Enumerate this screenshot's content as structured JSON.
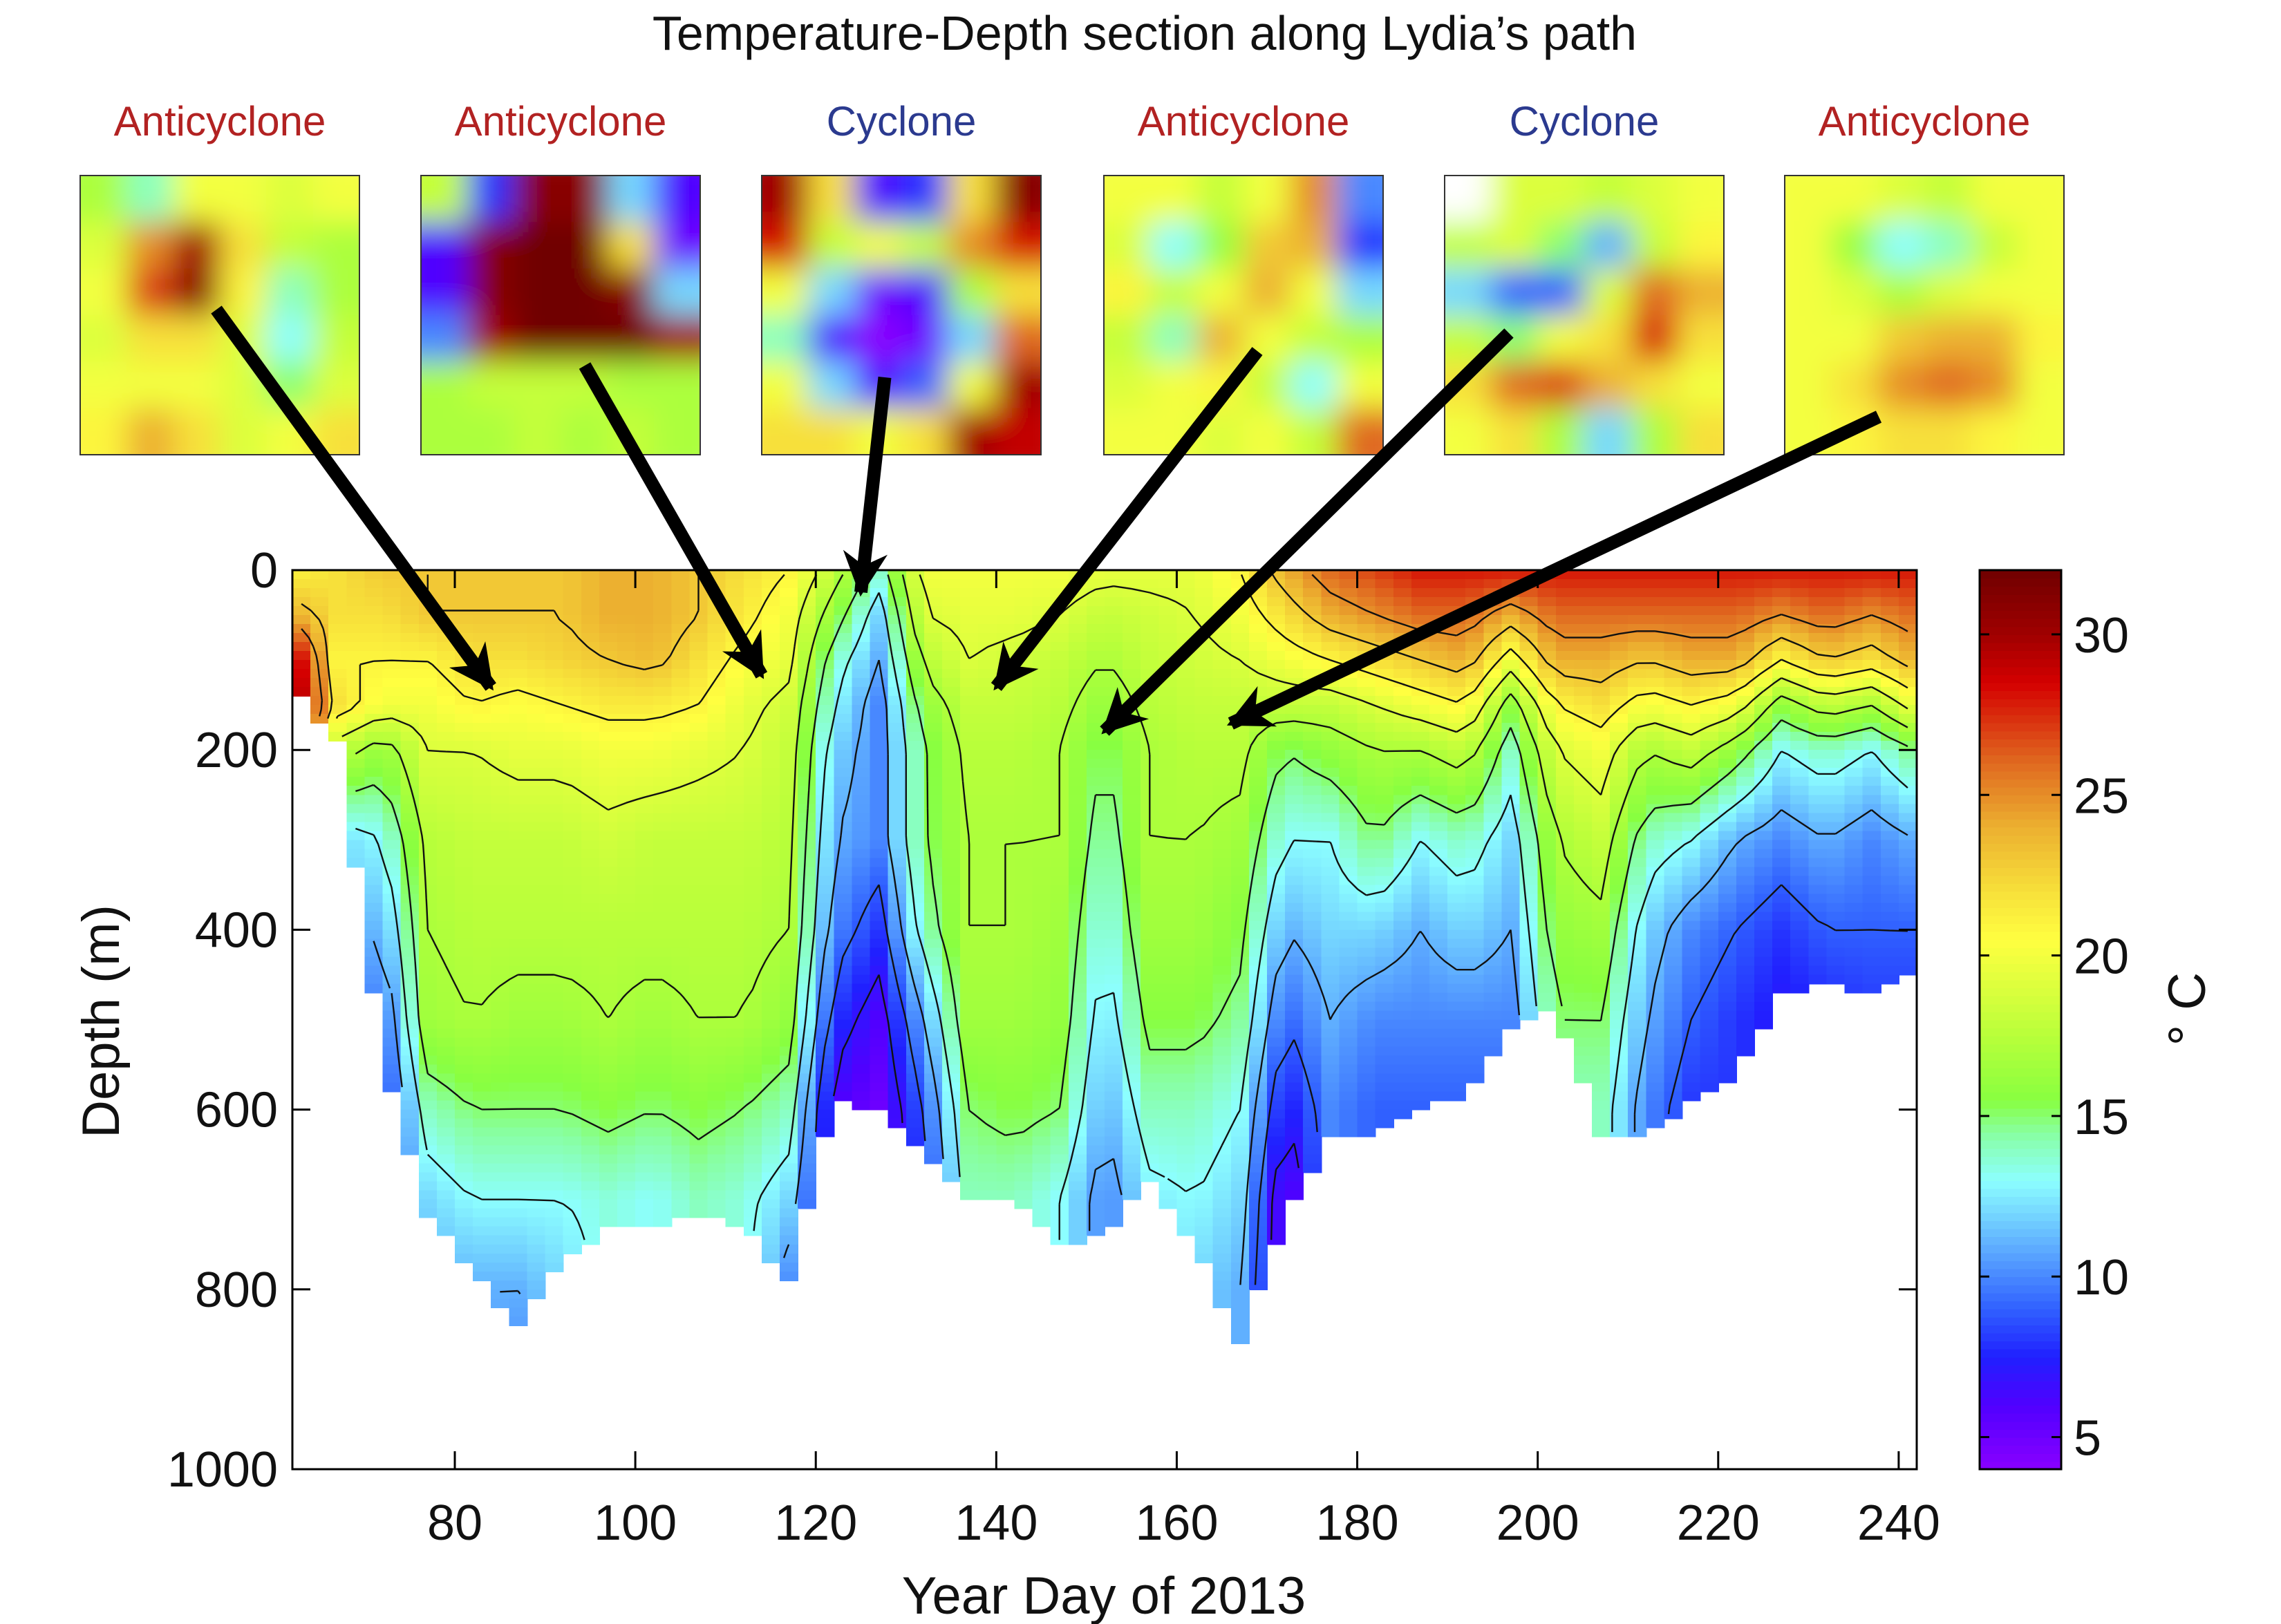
{
  "chart_data": {
    "type": "heatmap",
    "title": "Temperature-Depth section along Lydia’s path",
    "xlabel": "Year Day of 2013",
    "ylabel": "Depth (m)",
    "colorbar_label": "° C",
    "xlim": [
      62,
      242
    ],
    "ylim": [
      0,
      1000
    ],
    "y_reversed": true,
    "xticks": [
      "80",
      "100",
      "120",
      "140",
      "160",
      "180",
      "200",
      "220",
      "240"
    ],
    "xtick_values": [
      80,
      100,
      120,
      140,
      160,
      180,
      200,
      220,
      240
    ],
    "yticks": [
      "0",
      "200",
      "400",
      "600",
      "800",
      "1000"
    ],
    "ytick_values": [
      0,
      200,
      400,
      600,
      800,
      1000
    ],
    "clim": [
      4,
      32
    ],
    "colorbar_ticks": [
      "5",
      "10",
      "15",
      "20",
      "25",
      "30"
    ],
    "colorbar_tick_values": [
      5,
      10,
      15,
      20,
      25,
      30
    ],
    "colormap": [
      [
        4,
        "#8a00ff"
      ],
      [
        6,
        "#5000ff"
      ],
      [
        7.5,
        "#2020ff"
      ],
      [
        9,
        "#3060ff"
      ],
      [
        11,
        "#60b0ff"
      ],
      [
        13,
        "#8cffff"
      ],
      [
        14.5,
        "#88ffa0"
      ],
      [
        15.5,
        "#88ff40"
      ],
      [
        17.5,
        "#b8ff3a"
      ],
      [
        20.5,
        "#ffff40"
      ],
      [
        22,
        "#f7e03a"
      ],
      [
        24,
        "#ecb030"
      ],
      [
        26,
        "#e06a20"
      ],
      [
        28.5,
        "#d40000"
      ],
      [
        30,
        "#a00000"
      ],
      [
        32,
        "#700000"
      ]
    ],
    "contour_levels": [
      5,
      7,
      9,
      11,
      13,
      15,
      17,
      19,
      21,
      23,
      25
    ],
    "profile_depths": [
      0,
      50,
      100,
      150,
      200,
      300,
      400,
      500,
      600,
      700,
      800,
      900
    ],
    "columns": [
      {
        "day": 62,
        "max_depth": 130,
        "temps": [
          21,
          24,
          30,
          31,
          31
        ]
      },
      {
        "day": 67,
        "max_depth": 190,
        "temps": [
          22,
          22,
          21,
          22,
          18,
          12
        ]
      },
      {
        "day": 72,
        "max_depth": 540,
        "temps": [
          23,
          22,
          21,
          20,
          16,
          13,
          11,
          9,
          8
        ]
      },
      {
        "day": 77,
        "max_depth": 720,
        "temps": [
          23,
          23,
          21,
          20,
          19,
          17.5,
          17,
          16.5,
          14,
          12,
          11
        ]
      },
      {
        "day": 82,
        "max_depth": 780,
        "temps": [
          23,
          23,
          22,
          21,
          19,
          18,
          17.5,
          17,
          15,
          13,
          11
        ]
      },
      {
        "day": 87,
        "max_depth": 840,
        "temps": [
          23,
          23,
          22,
          20.5,
          19.5,
          18,
          17.5,
          16.5,
          15,
          13,
          11,
          10
        ]
      },
      {
        "day": 92,
        "max_depth": 770,
        "temps": [
          23,
          23,
          22.5,
          21,
          19.5,
          18,
          17.5,
          16.5,
          15,
          13,
          12
        ]
      },
      {
        "day": 97,
        "max_depth": 730,
        "temps": [
          24,
          24,
          23,
          21.5,
          20,
          18.5,
          17.5,
          17,
          15.5,
          13.5
        ]
      },
      {
        "day": 102,
        "max_depth": 730,
        "temps": [
          24,
          24,
          23.5,
          21.5,
          20,
          18,
          17.5,
          16.5,
          15,
          13
        ]
      },
      {
        "day": 107,
        "max_depth": 720,
        "temps": [
          23,
          23,
          22,
          21,
          19.5,
          18,
          17.5,
          17,
          15.5,
          14
        ]
      },
      {
        "day": 112,
        "max_depth": 730,
        "temps": [
          22,
          21.5,
          20.5,
          19.5,
          19,
          18,
          17.5,
          17,
          15,
          13.5
        ]
      },
      {
        "day": 117,
        "max_depth": 790,
        "temps": [
          21,
          20,
          19.5,
          18.5,
          18,
          17.5,
          17,
          16,
          14,
          12,
          10
        ]
      },
      {
        "day": 122,
        "max_depth": 590,
        "temps": [
          18,
          16,
          14,
          13,
          12,
          11,
          10,
          8,
          6
        ]
      },
      {
        "day": 127,
        "max_depth": 600,
        "temps": [
          14,
          12,
          11,
          10,
          10,
          10,
          8,
          6,
          5,
          5
        ]
      },
      {
        "day": 132,
        "max_depth": 650,
        "temps": [
          20,
          19,
          17.5,
          16,
          15,
          15,
          14,
          11,
          9,
          8
        ]
      },
      {
        "day": 137,
        "max_depth": 700,
        "temps": [
          20,
          19.5,
          19,
          18,
          17.5,
          17,
          17,
          16.5,
          15,
          14
        ]
      },
      {
        "day": 142,
        "max_depth": 700,
        "temps": [
          20,
          19.5,
          18.5,
          18,
          17.5,
          17,
          17,
          16.5,
          15.5,
          14
        ]
      },
      {
        "day": 147,
        "max_depth": 750,
        "temps": [
          20,
          19,
          18,
          17.5,
          17,
          17,
          16.5,
          16,
          15,
          13
        ]
      },
      {
        "day": 152,
        "max_depth": 740,
        "temps": [
          19.5,
          18,
          17,
          16,
          15,
          14,
          13,
          12,
          11,
          10
        ]
      },
      {
        "day": 157,
        "max_depth": 680,
        "temps": [
          19.5,
          18.5,
          18,
          17.5,
          17,
          17,
          16.5,
          15.5,
          14,
          12.5
        ]
      },
      {
        "day": 162,
        "max_depth": 750,
        "temps": [
          19.5,
          19,
          18.5,
          18,
          17.5,
          17,
          16.5,
          15.5,
          14,
          13,
          12
        ]
      },
      {
        "day": 167,
        "max_depth": 860,
        "temps": [
          21,
          20,
          19,
          18,
          17.5,
          16.5,
          15.5,
          14.5,
          13,
          12,
          11
        ]
      },
      {
        "day": 172,
        "max_depth": 720,
        "temps": [
          24,
          22,
          20,
          18,
          15,
          13,
          11,
          9,
          7,
          5
        ]
      },
      {
        "day": 177,
        "max_depth": 630,
        "temps": [
          26,
          24,
          21,
          18,
          16,
          13,
          12,
          11,
          10
        ]
      },
      {
        "day": 182,
        "max_depth": 630,
        "temps": [
          27,
          25,
          22,
          19,
          17,
          15,
          12,
          10,
          9
        ]
      },
      {
        "day": 187,
        "max_depth": 600,
        "temps": [
          28,
          26,
          23,
          20,
          17,
          13,
          11,
          10,
          9
        ]
      },
      {
        "day": 192,
        "max_depth": 585,
        "temps": [
          28,
          26,
          24,
          21,
          18,
          14,
          12,
          10,
          9
        ]
      },
      {
        "day": 197,
        "max_depth": 510,
        "temps": [
          28,
          24,
          20,
          16,
          14,
          12,
          11,
          10,
          9
        ]
      },
      {
        "day": 202,
        "max_depth": 490,
        "temps": [
          28,
          26,
          24,
          21,
          19,
          17,
          16,
          15,
          14
        ]
      },
      {
        "day": 207,
        "max_depth": 630,
        "temps": [
          28,
          26,
          24,
          22,
          20,
          18,
          16.5,
          15,
          14
        ]
      },
      {
        "day": 212,
        "max_depth": 630,
        "temps": [
          28,
          26,
          23,
          20,
          17,
          14,
          12,
          11,
          10
        ]
      },
      {
        "day": 217,
        "max_depth": 590,
        "temps": [
          28,
          26,
          24,
          21,
          18,
          13,
          10,
          9,
          8
        ]
      },
      {
        "day": 222,
        "max_depth": 560,
        "temps": [
          28,
          26,
          24,
          20,
          16,
          11,
          9,
          8,
          8
        ]
      },
      {
        "day": 227,
        "max_depth": 470,
        "temps": [
          28,
          25,
          21,
          16,
          13,
          10,
          8,
          7
        ]
      },
      {
        "day": 232,
        "max_depth": 460,
        "temps": [
          28,
          26,
          23,
          18,
          14,
          11,
          9,
          7.5
        ]
      },
      {
        "day": 237,
        "max_depth": 470,
        "temps": [
          28,
          25,
          22,
          17,
          13,
          10,
          9,
          8
        ]
      },
      {
        "day": 242,
        "max_depth": 440,
        "temps": [
          28,
          26,
          24,
          20,
          15,
          11,
          9,
          8
        ]
      }
    ]
  },
  "eddy_panels": [
    {
      "label": "Anticyclone",
      "type": "anticyclone",
      "label_color": "#b22222",
      "grid": [
        [
          17,
          14,
          20,
          20,
          19,
          20
        ],
        [
          19,
          25,
          30,
          22,
          18,
          17
        ],
        [
          20,
          27,
          31,
          21,
          14,
          17
        ],
        [
          19,
          22,
          22,
          19,
          13,
          18
        ],
        [
          20,
          20,
          20,
          19,
          15,
          19
        ],
        [
          21,
          24,
          22,
          19,
          20,
          22
        ]
      ]
    },
    {
      "label": "Anticyclone",
      "type": "anticyclone",
      "label_color": "#b22222",
      "grid": [
        [
          18,
          8,
          31,
          31,
          12,
          6
        ],
        [
          6,
          31,
          32,
          32,
          22,
          5
        ],
        [
          6,
          31,
          32,
          32,
          31,
          12
        ],
        [
          10,
          30,
          32,
          32,
          32,
          30
        ],
        [
          17,
          18,
          18,
          18,
          17,
          17
        ],
        [
          17,
          17,
          18,
          17,
          18,
          17
        ]
      ]
    },
    {
      "label": "Cyclone",
      "type": "cyclone",
      "label_color": "#2b3a8f",
      "grid": [
        [
          30,
          22,
          6,
          8,
          22,
          31
        ],
        [
          28,
          18,
          20,
          18,
          25,
          28
        ],
        [
          20,
          12,
          5,
          6,
          17,
          22
        ],
        [
          14,
          6,
          4,
          5,
          12,
          26
        ],
        [
          20,
          12,
          6,
          9,
          20,
          30
        ],
        [
          22,
          22,
          20,
          22,
          30,
          29
        ]
      ]
    },
    {
      "label": "Anticyclone",
      "type": "anticyclone",
      "label_color": "#b22222",
      "grid": [
        [
          20,
          20,
          18,
          20,
          25,
          10
        ],
        [
          19,
          13,
          16,
          23,
          24,
          8
        ],
        [
          21,
          18,
          20,
          24,
          20,
          12
        ],
        [
          18,
          14,
          24,
          20,
          18,
          17
        ],
        [
          19,
          20,
          21,
          18,
          13,
          20
        ],
        [
          20,
          20,
          19,
          20,
          18,
          26
        ]
      ]
    },
    {
      "label": "Cyclone",
      "type": "cyclone",
      "label_color": "#2b3a8f",
      "grid": [
        [
          null,
          19,
          19,
          18,
          19,
          20
        ],
        [
          18,
          19,
          15,
          11,
          18,
          21
        ],
        [
          12,
          9,
          9,
          19,
          26,
          24
        ],
        [
          18,
          15,
          20,
          22,
          28,
          22
        ],
        [
          22,
          26,
          27,
          24,
          22,
          20
        ],
        [
          20,
          22,
          17,
          12,
          17,
          22
        ]
      ]
    },
    {
      "label": "Anticyclone",
      "type": "anticyclone",
      "label_color": "#b22222",
      "grid": [
        [
          20,
          20,
          19,
          18,
          20,
          20
        ],
        [
          20,
          16,
          13,
          14,
          18,
          20
        ],
        [
          20,
          19,
          17,
          19,
          20,
          20
        ],
        [
          20,
          20,
          23,
          24,
          24,
          21
        ],
        [
          20,
          22,
          25,
          26,
          25,
          20
        ],
        [
          20,
          21,
          22,
          22,
          21,
          20
        ]
      ]
    }
  ],
  "arrow_targets_day": [
    84,
    114,
    125,
    140,
    152,
    166
  ]
}
